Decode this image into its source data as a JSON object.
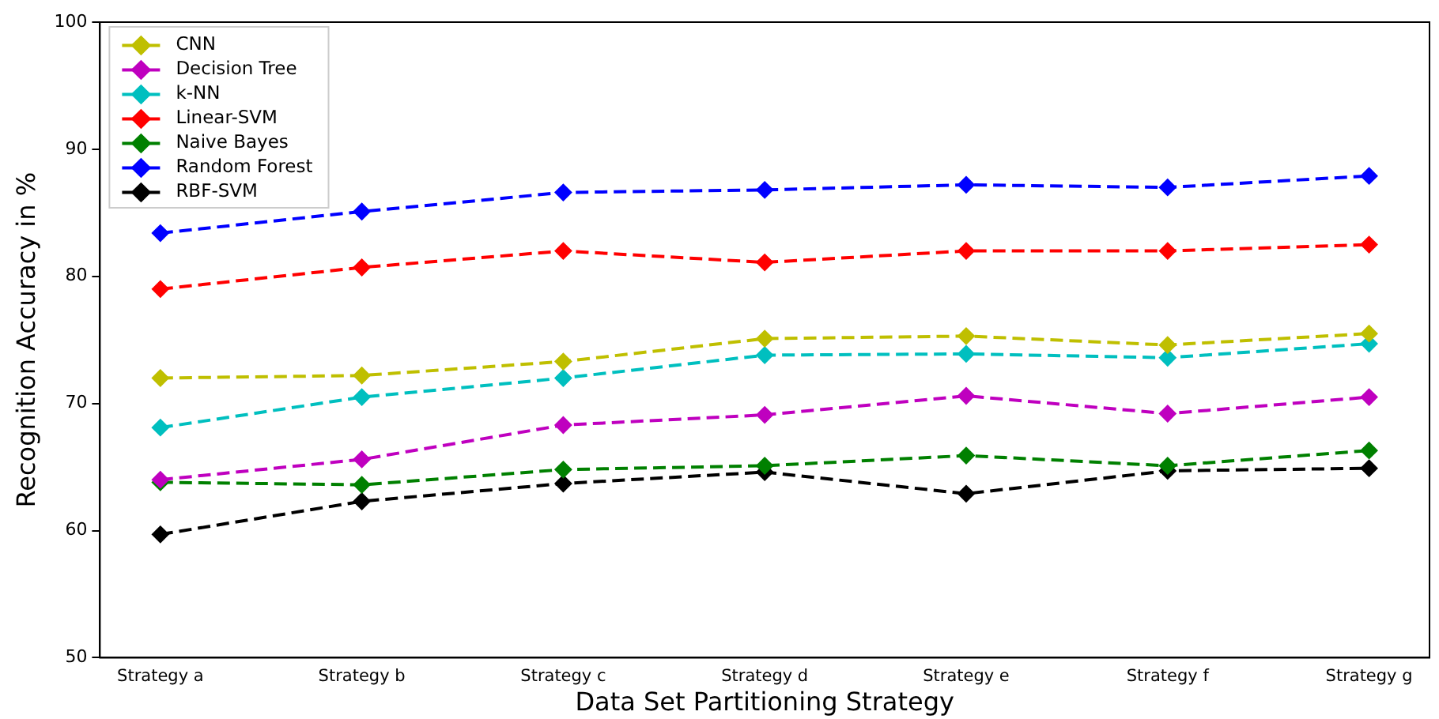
{
  "chart_data": {
    "type": "line",
    "xlabel": "Data Set Partitioning Strategy",
    "ylabel": "Recognition Accuracy in %",
    "categories": [
      "Strategy a",
      "Strategy b",
      "Strategy c",
      "Strategy d",
      "Strategy e",
      "Strategy f",
      "Strategy g"
    ],
    "ylim": [
      50,
      100
    ],
    "yticks": [
      50,
      60,
      70,
      80,
      90,
      100
    ],
    "grid": false,
    "legend": "top left",
    "marker": "diamond",
    "line_style": "dashed",
    "series": [
      {
        "name": "CNN",
        "color": "#bfbf00",
        "values": [
          72.0,
          72.2,
          73.3,
          75.1,
          75.3,
          74.6,
          75.5
        ]
      },
      {
        "name": "Decision Tree",
        "color": "#bf00bf",
        "values": [
          64.0,
          65.6,
          68.3,
          69.1,
          70.6,
          69.2,
          70.5
        ]
      },
      {
        "name": "k-NN",
        "color": "#00bfbf",
        "values": [
          68.1,
          70.5,
          72.0,
          73.8,
          73.9,
          73.6,
          74.7
        ]
      },
      {
        "name": "Linear-SVM",
        "color": "#ff0000",
        "values": [
          79.0,
          80.7,
          82.0,
          81.1,
          82.0,
          82.0,
          82.5
        ]
      },
      {
        "name": "Naive Bayes",
        "color": "#008000",
        "values": [
          63.8,
          63.6,
          64.8,
          65.1,
          65.9,
          65.1,
          66.3
        ]
      },
      {
        "name": "Random Forest",
        "color": "#0000ff",
        "values": [
          83.4,
          85.1,
          86.6,
          86.8,
          87.2,
          87.0,
          87.9
        ]
      },
      {
        "name": "RBF-SVM",
        "color": "#000000",
        "values": [
          59.7,
          62.3,
          63.7,
          64.6,
          62.9,
          64.7,
          64.9
        ]
      }
    ]
  }
}
